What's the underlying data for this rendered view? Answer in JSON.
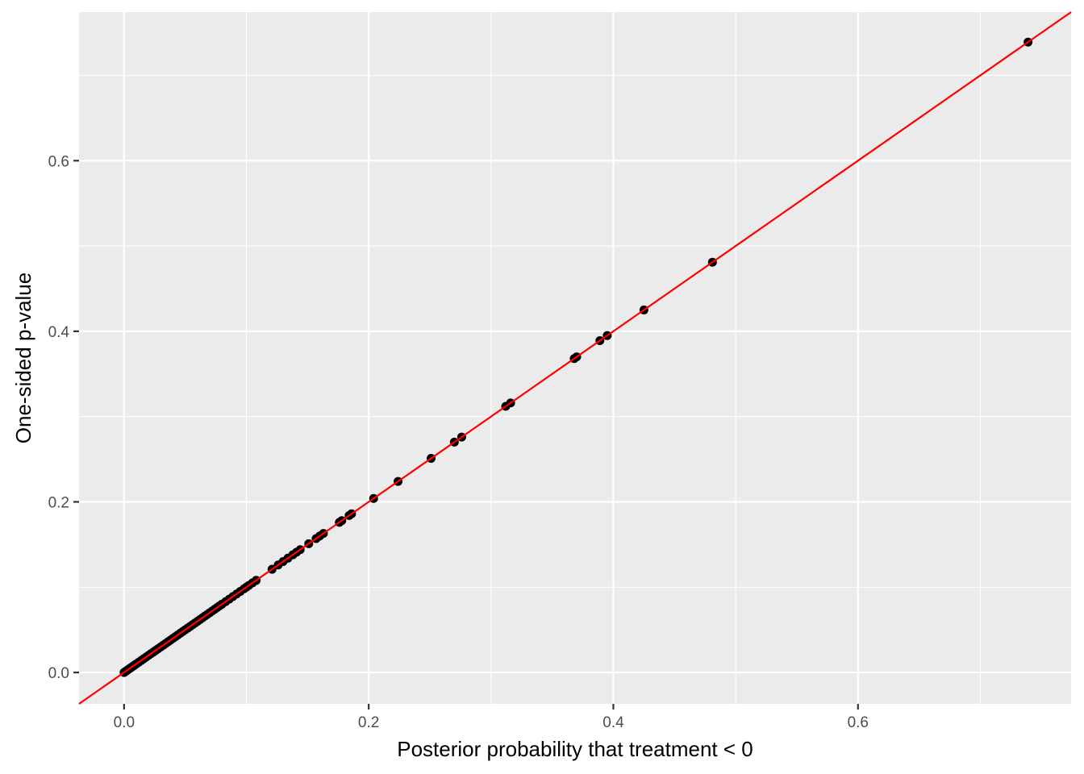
{
  "chart_data": {
    "type": "scatter",
    "title": "",
    "xlabel": "Posterior probability that treatment < 0",
    "ylabel": "One-sided p-value",
    "xlim": [
      -0.0368,
      0.7742
    ],
    "ylim": [
      -0.0368,
      0.7742
    ],
    "x_ticks": [
      0.0,
      0.2,
      0.4,
      0.6
    ],
    "y_ticks": [
      0.0,
      0.2,
      0.4,
      0.6
    ],
    "x_tick_labels": [
      "0.0",
      "0.2",
      "0.4",
      "0.6"
    ],
    "y_tick_labels": [
      "0.0",
      "0.2",
      "0.4",
      "0.6"
    ],
    "grid": true,
    "legend": "none",
    "reference_line": {
      "intercept": 0,
      "slope": 1,
      "color": "#ff0000"
    },
    "colors": {
      "panel": "#ebebeb",
      "grid": "#ffffff",
      "points": "#000000"
    },
    "series": [
      {
        "x": [
          0.0,
          0.001,
          0.002,
          0.003,
          0.004,
          0.005,
          0.006,
          0.007,
          0.008,
          0.009,
          0.01,
          0.012,
          0.014,
          0.016,
          0.018,
          0.02,
          0.022,
          0.024,
          0.026,
          0.028,
          0.03,
          0.032,
          0.034,
          0.036,
          0.038,
          0.04,
          0.042,
          0.044,
          0.046,
          0.048,
          0.05,
          0.052,
          0.054,
          0.056,
          0.058,
          0.06,
          0.062,
          0.064,
          0.066,
          0.068,
          0.07,
          0.072,
          0.074,
          0.076,
          0.078,
          0.08,
          0.083,
          0.086,
          0.089,
          0.092,
          0.095,
          0.098,
          0.1,
          0.102,
          0.105,
          0.108,
          0.121,
          0.126,
          0.13,
          0.134,
          0.138,
          0.141,
          0.144,
          0.151,
          0.157,
          0.16,
          0.163,
          0.176,
          0.178,
          0.184,
          0.186,
          0.204,
          0.224,
          0.251,
          0.27,
          0.276,
          0.312,
          0.316,
          0.368,
          0.37,
          0.389,
          0.395,
          0.425,
          0.481,
          0.739
        ],
        "y": [
          0.0,
          0.001,
          0.002,
          0.003,
          0.004,
          0.005,
          0.006,
          0.007,
          0.008,
          0.009,
          0.01,
          0.012,
          0.014,
          0.016,
          0.018,
          0.02,
          0.022,
          0.024,
          0.026,
          0.028,
          0.03,
          0.032,
          0.034,
          0.036,
          0.038,
          0.04,
          0.042,
          0.044,
          0.046,
          0.048,
          0.05,
          0.052,
          0.054,
          0.056,
          0.058,
          0.06,
          0.062,
          0.064,
          0.066,
          0.068,
          0.07,
          0.072,
          0.074,
          0.076,
          0.078,
          0.08,
          0.083,
          0.086,
          0.089,
          0.092,
          0.095,
          0.098,
          0.1,
          0.102,
          0.105,
          0.108,
          0.121,
          0.126,
          0.13,
          0.134,
          0.138,
          0.141,
          0.144,
          0.151,
          0.157,
          0.16,
          0.163,
          0.176,
          0.178,
          0.184,
          0.186,
          0.204,
          0.224,
          0.251,
          0.27,
          0.276,
          0.312,
          0.316,
          0.368,
          0.37,
          0.389,
          0.395,
          0.425,
          0.481,
          0.739
        ]
      }
    ]
  }
}
